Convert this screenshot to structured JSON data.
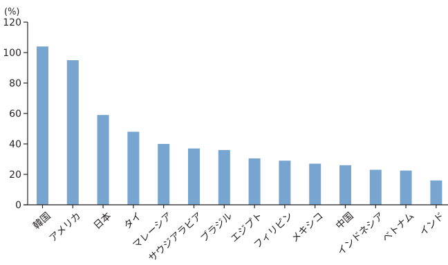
{
  "chart_data": {
    "type": "bar",
    "unit_label": "(%)",
    "categories": [
      "韓国",
      "アメリカ",
      "日本",
      "タイ",
      "マレーシア",
      "サウジアラビア",
      "ブラジル",
      "エジプト",
      "フィリピン",
      "メキシコ",
      "中国",
      "インドネシア",
      "ベトナム",
      "インド"
    ],
    "values": [
      104,
      95,
      59,
      48,
      40,
      37,
      36,
      30.5,
      29,
      27,
      26,
      23,
      22.5,
      16
    ],
    "ylim": [
      0,
      120
    ],
    "yticks": [
      0,
      20,
      40,
      60,
      80,
      100,
      120
    ],
    "grid": false,
    "colors": {
      "bar": "#78a5d0",
      "axis": "#231f20"
    }
  }
}
